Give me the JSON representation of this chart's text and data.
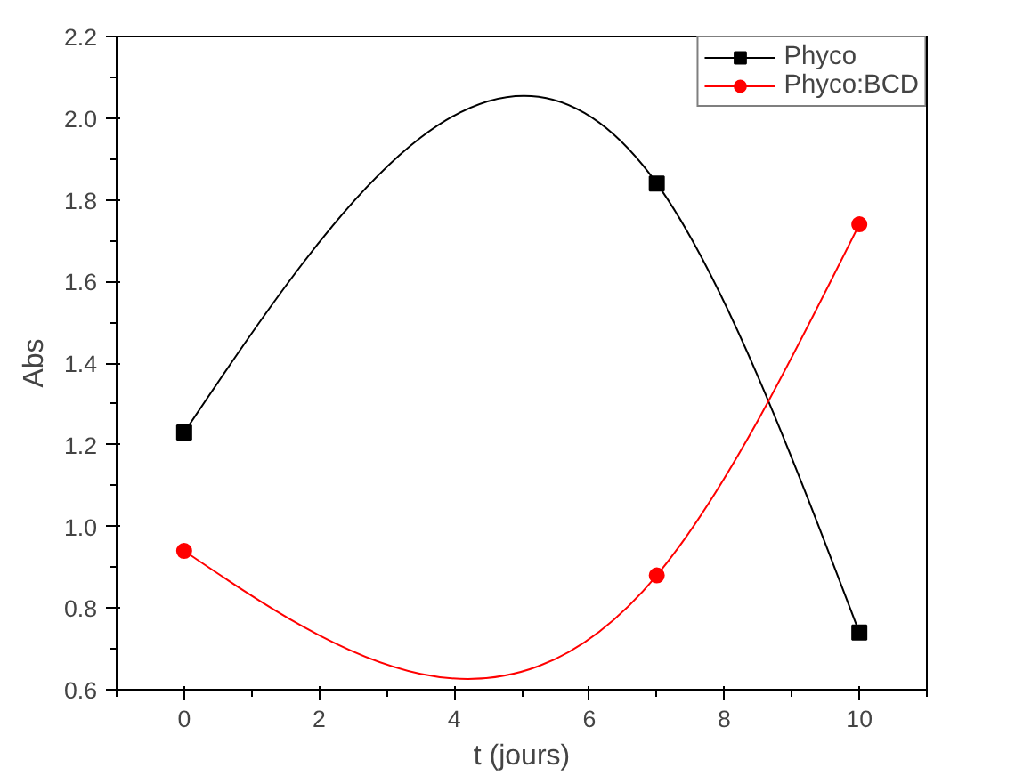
{
  "chart_data": {
    "type": "line",
    "xlabel": "t (jours)",
    "ylabel": "Abs",
    "x": [
      0,
      7,
      10
    ],
    "series": [
      {
        "name": "Phyco",
        "color": "#000000",
        "marker": "square",
        "values": [
          1.23,
          1.84,
          0.74
        ]
      },
      {
        "name": "Phyco:BCD",
        "color": "#ff0000",
        "marker": "circle",
        "values": [
          0.94,
          0.88,
          1.74
        ]
      }
    ],
    "xlim": [
      -1,
      11
    ],
    "xticks": [
      0,
      2,
      4,
      6,
      8,
      10
    ],
    "ylim": [
      0.6,
      2.2
    ],
    "yticks": [
      {
        "value": 0.6,
        "label": "0.6"
      },
      {
        "value": 0.8,
        "label": "0.8"
      },
      {
        "value": 1.0,
        "label": "1.0"
      },
      {
        "value": 1.2,
        "label": "1.2"
      },
      {
        "value": 1.4,
        "label": "1.4"
      },
      {
        "value": 1.6,
        "label": "1.6"
      },
      {
        "value": 1.8,
        "label": "1.8"
      },
      {
        "value": 2.0,
        "label": "2.0"
      },
      {
        "value": 2.2,
        "label": "2.2"
      }
    ],
    "grid": false,
    "legend": "top right",
    "line_style": "solid"
  }
}
